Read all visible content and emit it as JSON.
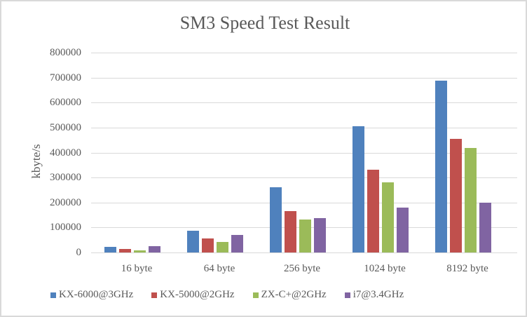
{
  "chart_data": {
    "type": "bar",
    "title": "SM3 Speed Test Result",
    "xlabel": "",
    "ylabel": "kbyte/s",
    "ylim": [
      0,
      800000
    ],
    "yticks": [
      "0",
      "100000",
      "200000",
      "300000",
      "400000",
      "500000",
      "600000",
      "700000",
      "800000"
    ],
    "grid": true,
    "legend_position": "bottom",
    "categories": [
      "16 byte",
      "64 byte",
      "256 byte",
      "1024 byte",
      "8192 byte"
    ],
    "series": [
      {
        "name": "KX-6000@3GHz",
        "color": "#4f81bd",
        "values": [
          23000,
          88000,
          260000,
          504000,
          687000
        ]
      },
      {
        "name": "KX-5000@2GHz",
        "color": "#c0504d",
        "values": [
          15000,
          55000,
          167000,
          330000,
          454000
        ]
      },
      {
        "name": "ZX-C+@2GHz",
        "color": "#9bbb59",
        "values": [
          9000,
          41000,
          131000,
          281000,
          419000
        ]
      },
      {
        "name": "i7@3.4GHz",
        "color": "#8064a2",
        "values": [
          24000,
          69000,
          137000,
          180000,
          200000
        ]
      }
    ]
  }
}
